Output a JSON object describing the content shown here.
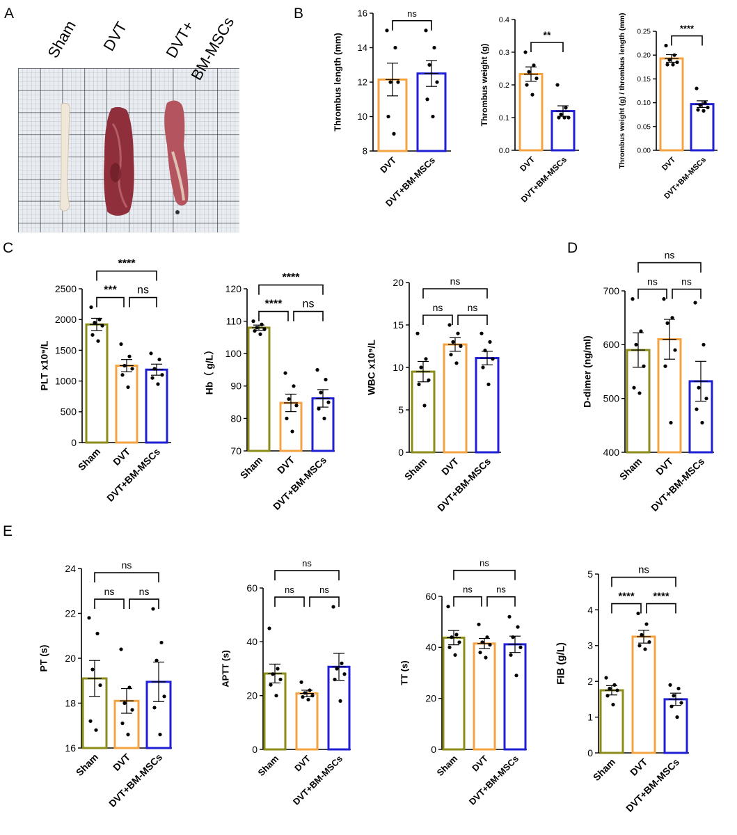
{
  "panel_labels": [
    "A",
    "B",
    "C",
    "D",
    "E"
  ],
  "photo": {
    "labels": [
      "Sham",
      "DVT",
      "DVT+",
      "BM-MSCs"
    ]
  },
  "colors": {
    "Sham": "#8c8c1a",
    "DVT": "#f4a340",
    "DVT+BM-MSCs": "#1f1fd6",
    "axis": "#000000"
  },
  "chart_data": [
    {
      "id": "thrombus-length",
      "type": "bar",
      "panel": "B",
      "ylabel": "Thrombus length (mm)",
      "ylim": [
        8,
        16
      ],
      "yticks": [
        8,
        10,
        12,
        14,
        16
      ],
      "categories": [
        "DVT",
        "DVT+BM-MSCs"
      ],
      "values": [
        12.15,
        12.5
      ],
      "errors": [
        0.95,
        0.75
      ],
      "points": [
        [
          15,
          14,
          12,
          12,
          10,
          9
        ],
        [
          15,
          14,
          13,
          12,
          11,
          10
        ]
      ],
      "significance": [
        {
          "from": 0,
          "to": 1,
          "label": "ns",
          "level": 0
        }
      ]
    },
    {
      "id": "thrombus-weight",
      "type": "bar",
      "panel": "B",
      "ylabel": "Thrombus weight (g)",
      "ylim": [
        0,
        0.4
      ],
      "yticks": [
        "0.0",
        "0.1",
        "0.2",
        "0.3",
        "0.4"
      ],
      "categories": [
        "DVT",
        "DVT+BM-MSCs"
      ],
      "values": [
        0.233,
        0.12
      ],
      "errors": [
        0.022,
        0.016
      ],
      "points": [
        [
          0.3,
          0.26,
          0.24,
          0.22,
          0.2,
          0.17
        ],
        [
          0.2,
          0.13,
          0.11,
          0.1,
          0.1,
          0.1
        ]
      ],
      "significance": [
        {
          "from": 0,
          "to": 1,
          "label": "**",
          "level": 0
        }
      ]
    },
    {
      "id": "weight-length-ratio",
      "type": "bar",
      "panel": "B",
      "ylabel": "Thrombus weight (g) / thrombus length (mm)",
      "ylim": [
        0,
        0.25
      ],
      "yticks": [
        "0.00",
        "0.05",
        "0.10",
        "0.15",
        "0.20",
        "0.25"
      ],
      "categories": [
        "DVT",
        "DVT+BM-MSCs"
      ],
      "values": [
        0.193,
        0.097
      ],
      "errors": [
        0.008,
        0.007
      ],
      "points": [
        [
          0.22,
          0.2,
          0.19,
          0.185,
          0.18,
          0.18
        ],
        [
          0.13,
          0.1,
          0.095,
          0.09,
          0.085,
          0.083
        ]
      ],
      "significance": [
        {
          "from": 0,
          "to": 1,
          "label": "****",
          "level": 0
        }
      ]
    },
    {
      "id": "plt",
      "type": "bar",
      "panel": "C",
      "ylabel": "PLT x10⁹/L",
      "ylim": [
        0,
        2500
      ],
      "yticks": [
        0,
        500,
        1000,
        1500,
        2000,
        2500
      ],
      "categories": [
        "Sham",
        "DVT",
        "DVT+BM-MSCs"
      ],
      "values": [
        1920,
        1250,
        1185
      ],
      "errors": [
        100,
        100,
        90
      ],
      "points": [
        [
          2200,
          2000,
          1950,
          1900,
          1750,
          1650
        ],
        [
          1600,
          1400,
          1250,
          1200,
          1100,
          900
        ],
        [
          1450,
          1350,
          1200,
          1100,
          1050,
          950
        ]
      ],
      "significance": [
        {
          "from": 0,
          "to": 1,
          "label": "***",
          "level": 0
        },
        {
          "from": 1,
          "to": 2,
          "label": "ns",
          "level": 0
        },
        {
          "from": 0,
          "to": 2,
          "label": "****",
          "level": 1
        }
      ]
    },
    {
      "id": "hb",
      "type": "bar",
      "panel": "C",
      "ylabel": "Hb（ g/L）",
      "ylim": [
        70,
        120
      ],
      "yticks": [
        70,
        80,
        90,
        100,
        110,
        120
      ],
      "categories": [
        "Sham",
        "DVT",
        "DVT+BM-MSCs"
      ],
      "values": [
        108,
        84.8,
        86.2
      ],
      "errors": [
        0.8,
        2.7,
        2.7
      ],
      "points": [
        [
          110,
          109,
          108,
          107.5,
          107,
          106
        ],
        [
          94,
          90,
          86,
          84,
          80,
          76
        ],
        [
          95,
          92,
          88,
          85,
          83,
          80
        ]
      ],
      "significance": [
        {
          "from": 0,
          "to": 1,
          "label": "****",
          "level": 0
        },
        {
          "from": 1,
          "to": 2,
          "label": "ns",
          "level": 0
        },
        {
          "from": 0,
          "to": 2,
          "label": "****",
          "level": 1
        }
      ]
    },
    {
      "id": "wbc",
      "type": "bar",
      "panel": "C",
      "ylabel": "WBC x10⁹/L",
      "ylim": [
        0,
        20
      ],
      "yticks": [
        0,
        5,
        10,
        15,
        20
      ],
      "categories": [
        "Sham",
        "DVT",
        "DVT+BM-MSCs"
      ],
      "values": [
        9.5,
        12.7,
        11.1
      ],
      "errors": [
        1.2,
        0.8,
        0.8
      ],
      "points": [
        [
          14,
          11,
          10,
          8.5,
          8,
          5.5
        ],
        [
          15,
          14,
          13,
          12.5,
          11.5,
          10.5
        ],
        [
          14,
          13,
          12,
          11,
          10,
          8
        ]
      ],
      "significance": [
        {
          "from": 0,
          "to": 1,
          "label": "ns",
          "level": 0
        },
        {
          "from": 1,
          "to": 2,
          "label": "ns",
          "level": 0
        },
        {
          "from": 0,
          "to": 2,
          "label": "ns",
          "level": 1
        }
      ]
    },
    {
      "id": "d-dimer",
      "type": "bar",
      "panel": "D",
      "ylabel": "D-dimer (ng/ml)",
      "ylim": [
        400,
        700
      ],
      "yticks": [
        400,
        500,
        600,
        700
      ],
      "categories": [
        "Sham",
        "DVT",
        "DVT+BM-MSCs"
      ],
      "values": [
        590,
        610,
        532
      ],
      "errors": [
        32,
        37,
        37
      ],
      "points": [
        [
          685,
          625,
          600,
          560,
          520,
          510
        ],
        [
          685,
          650,
          640,
          590,
          560,
          455
        ],
        [
          678,
          600,
          520,
          500,
          480,
          455
        ]
      ],
      "significance": [
        {
          "from": 0,
          "to": 1,
          "label": "ns",
          "level": 0
        },
        {
          "from": 1,
          "to": 2,
          "label": "ns",
          "level": 0
        },
        {
          "from": 0,
          "to": 2,
          "label": "ns",
          "level": 1
        }
      ]
    },
    {
      "id": "pt",
      "type": "bar",
      "panel": "E",
      "ylabel": "PT (s)",
      "ylim": [
        16,
        24
      ],
      "yticks": [
        16,
        18,
        20,
        22,
        24
      ],
      "categories": [
        "Sham",
        "DVT",
        "DVT+BM-MSCs"
      ],
      "values": [
        19.1,
        18.1,
        18.95
      ],
      "errors": [
        0.8,
        0.55,
        0.88
      ],
      "points": [
        [
          21.8,
          21.1,
          19.5,
          18.8,
          17.2,
          16.8
        ],
        [
          20.4,
          18.7,
          18.0,
          17.7,
          17.1,
          16.6
        ],
        [
          22.2,
          20.7,
          19.9,
          18.3,
          17.8,
          16.6
        ]
      ],
      "significance": [
        {
          "from": 0,
          "to": 1,
          "label": "ns",
          "level": 0
        },
        {
          "from": 1,
          "to": 2,
          "label": "ns",
          "level": 0
        },
        {
          "from": 0,
          "to": 2,
          "label": "ns",
          "level": 1
        }
      ]
    },
    {
      "id": "aptt",
      "type": "bar",
      "panel": "E",
      "ylabel": "APTT (s)",
      "ylim": [
        0,
        60
      ],
      "yticks": [
        0,
        20,
        40,
        60
      ],
      "categories": [
        "Sham",
        "DVT",
        "DVT+BM-MSCs"
      ],
      "values": [
        28.2,
        20.8,
        30.7
      ],
      "errors": [
        3.5,
        1.2,
        5
      ],
      "points": [
        [
          45,
          30,
          28,
          26,
          24,
          20
        ],
        [
          25,
          22,
          21,
          20,
          19.5,
          18.5
        ],
        [
          53,
          32,
          30,
          28,
          26,
          18
        ]
      ],
      "significance": [
        {
          "from": 0,
          "to": 1,
          "label": "ns",
          "level": 0
        },
        {
          "from": 1,
          "to": 2,
          "label": "ns",
          "level": 0
        },
        {
          "from": 0,
          "to": 2,
          "label": "ns",
          "level": 1
        }
      ]
    },
    {
      "id": "tt",
      "type": "bar",
      "panel": "E",
      "ylabel": "TT (s)",
      "ylim": [
        0,
        60
      ],
      "yticks": [
        0,
        20,
        40,
        60
      ],
      "categories": [
        "Sham",
        "DVT",
        "DVT+BM-MSCs"
      ],
      "values": [
        43.8,
        41.5,
        41.2
      ],
      "errors": [
        2.8,
        2,
        3.2
      ],
      "points": [
        [
          56,
          45,
          44,
          42,
          40,
          37
        ],
        [
          49,
          44,
          42,
          41,
          38,
          36
        ],
        [
          52,
          48,
          44,
          40,
          37,
          29
        ]
      ],
      "significance": [
        {
          "from": 0,
          "to": 1,
          "label": "ns",
          "level": 0
        },
        {
          "from": 1,
          "to": 2,
          "label": "ns",
          "level": 0
        },
        {
          "from": 0,
          "to": 2,
          "label": "ns",
          "level": 1
        }
      ]
    },
    {
      "id": "fib",
      "type": "bar",
      "panel": "E",
      "ylabel": "FIB (g/L)",
      "ylim": [
        0,
        5
      ],
      "yticks": [
        0,
        1,
        2,
        3,
        4,
        5
      ],
      "categories": [
        "Sham",
        "DVT",
        "DVT+BM-MSCs"
      ],
      "values": [
        1.75,
        3.25,
        1.5
      ],
      "errors": [
        0.13,
        0.18,
        0.17
      ],
      "points": [
        [
          2.1,
          1.9,
          1.8,
          1.75,
          1.6,
          1.35
        ],
        [
          3.9,
          3.6,
          3.3,
          3.1,
          3.0,
          2.9
        ],
        [
          1.9,
          1.8,
          1.6,
          1.4,
          1.3,
          1.0
        ]
      ],
      "significance": [
        {
          "from": 0,
          "to": 1,
          "label": "****",
          "level": 0
        },
        {
          "from": 1,
          "to": 2,
          "label": "****",
          "level": 0
        },
        {
          "from": 0,
          "to": 2,
          "label": "ns",
          "level": 1
        }
      ]
    }
  ]
}
